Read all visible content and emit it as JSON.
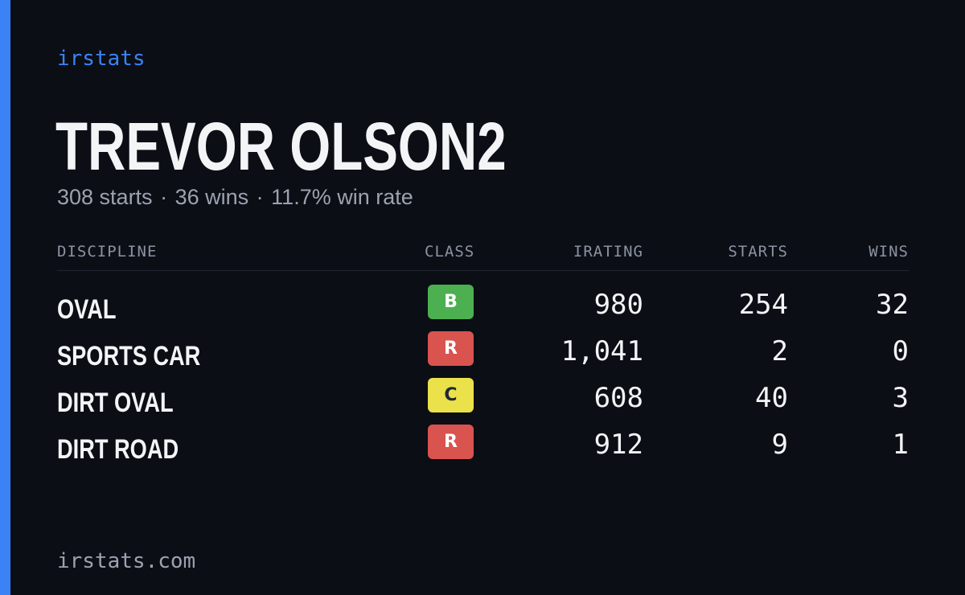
{
  "brand": "irstats",
  "driver": {
    "name": "TREVOR OLSON2",
    "starts": "308 starts",
    "wins": "36 wins",
    "win_rate": "11.7% win rate",
    "separator": "·"
  },
  "table": {
    "headers": {
      "discipline": "DISCIPLINE",
      "class": "CLASS",
      "irating": "IRATING",
      "starts": "STARTS",
      "wins": "WINS"
    },
    "rows": [
      {
        "discipline": "OVAL",
        "class": "B",
        "class_color": "#4caf50",
        "irating": "980",
        "starts": "254",
        "wins": "32"
      },
      {
        "discipline": "SPORTS CAR",
        "class": "R",
        "class_color": "#d9534f",
        "irating": "1,041",
        "starts": "2",
        "wins": "0"
      },
      {
        "discipline": "DIRT OVAL",
        "class": "C",
        "class_color": "#ebe14a",
        "irating": "608",
        "starts": "40",
        "wins": "3"
      },
      {
        "discipline": "DIRT ROAD",
        "class": "R",
        "class_color": "#d9534f",
        "irating": "912",
        "starts": "9",
        "wins": "1"
      }
    ]
  },
  "footer": "irstats.com",
  "colors": {
    "background": "#0b0e15",
    "accent": "#3b82f6",
    "text_primary": "#f3f4f6",
    "text_muted": "#9ca3af"
  }
}
